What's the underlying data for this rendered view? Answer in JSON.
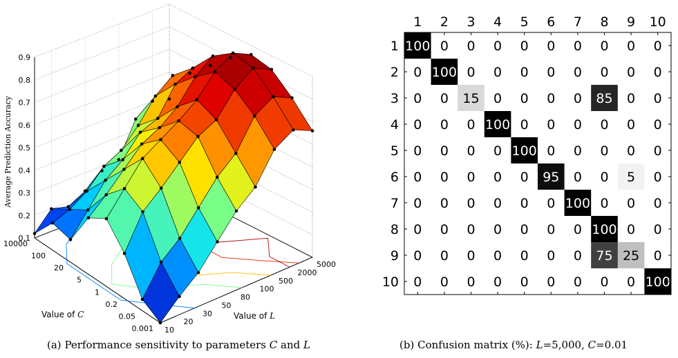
{
  "caption_left": {
    "tag": "(a)",
    "text": "Performance sensitivity to parameters ",
    "v1": "C",
    "mid": " and ",
    "v2": "L"
  },
  "caption_right": {
    "tag": "(b)",
    "text": "Confusion matrix (%): ",
    "v1": "L",
    "eq1": "=5,000, ",
    "v2": "C",
    "eq2": "=0.01"
  },
  "chart_data": [
    {
      "type": "surface3d",
      "zlabel": "Average Prediction Accuracy",
      "xlabel": {
        "text": "Value of ",
        "var": "C"
      },
      "ylabel": {
        "text": "Value of ",
        "var": "L"
      },
      "z_ticks": [
        "0.1",
        "0.2",
        "0.3",
        "0.4",
        "0.5",
        "0.6",
        "0.7",
        "0.8",
        "0.9"
      ],
      "zlim": [
        0.1,
        0.9
      ],
      "C_ticks": [
        "10000",
        "100",
        "20",
        "5",
        "1",
        "0.2",
        "0.05",
        "0.001"
      ],
      "L_ticks": [
        "10",
        "20",
        "30",
        "50",
        "80",
        "100",
        "500",
        "2000",
        "5000"
      ],
      "colormap": [
        "#00008f",
        "#0050ff",
        "#00dfff",
        "#70ff90",
        "#ffef00",
        "#ff7000",
        "#e00000",
        "#8f0000"
      ],
      "grid": true,
      "contours_on_floor": true,
      "accuracy_grid_C_by_L": [
        [
          0.12,
          0.2,
          0.18,
          0.22,
          0.28,
          0.3,
          0.45,
          0.5,
          0.48
        ],
        [
          0.22,
          0.25,
          0.3,
          0.38,
          0.42,
          0.5,
          0.6,
          0.66,
          0.64
        ],
        [
          0.2,
          0.3,
          0.4,
          0.46,
          0.55,
          0.58,
          0.7,
          0.74,
          0.72
        ],
        [
          0.35,
          0.42,
          0.5,
          0.58,
          0.62,
          0.68,
          0.78,
          0.84,
          0.8
        ],
        [
          0.4,
          0.5,
          0.6,
          0.65,
          0.7,
          0.76,
          0.85,
          0.9,
          0.86
        ],
        [
          0.3,
          0.45,
          0.52,
          0.6,
          0.68,
          0.72,
          0.82,
          0.88,
          0.84
        ],
        [
          0.15,
          0.28,
          0.35,
          0.45,
          0.55,
          0.62,
          0.75,
          0.8,
          0.76
        ],
        [
          0.1,
          0.18,
          0.25,
          0.35,
          0.45,
          0.52,
          0.65,
          0.7,
          0.66
        ]
      ]
    },
    {
      "type": "heatmap",
      "row_labels": [
        "1",
        "2",
        "3",
        "4",
        "5",
        "6",
        "7",
        "8",
        "9",
        "10"
      ],
      "col_labels": [
        "1",
        "2",
        "3",
        "4",
        "5",
        "6",
        "7",
        "8",
        "9",
        "10"
      ],
      "vmin": 0,
      "vmax": 100,
      "values": [
        [
          100,
          0,
          0,
          0,
          0,
          0,
          0,
          0,
          0,
          0
        ],
        [
          0,
          100,
          0,
          0,
          0,
          0,
          0,
          0,
          0,
          0
        ],
        [
          0,
          0,
          15,
          0,
          0,
          0,
          0,
          85,
          0,
          0
        ],
        [
          0,
          0,
          0,
          100,
          0,
          0,
          0,
          0,
          0,
          0
        ],
        [
          0,
          0,
          0,
          0,
          100,
          0,
          0,
          0,
          0,
          0
        ],
        [
          0,
          0,
          0,
          0,
          0,
          95,
          0,
          0,
          5,
          0
        ],
        [
          0,
          0,
          0,
          0,
          0,
          0,
          100,
          0,
          0,
          0
        ],
        [
          0,
          0,
          0,
          0,
          0,
          0,
          0,
          100,
          0,
          0
        ],
        [
          0,
          0,
          0,
          0,
          0,
          0,
          0,
          75,
          25,
          0
        ],
        [
          0,
          0,
          0,
          0,
          0,
          0,
          0,
          0,
          0,
          100
        ]
      ]
    }
  ]
}
